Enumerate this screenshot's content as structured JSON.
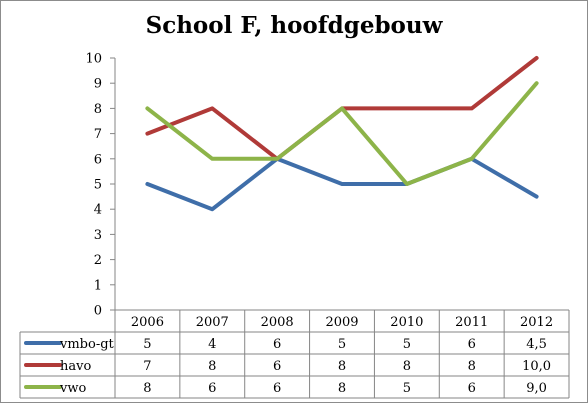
{
  "chart_data": {
    "type": "line",
    "title": "School F, hoofdgebouw",
    "categories": [
      "2006",
      "2007",
      "2008",
      "2009",
      "2010",
      "2011",
      "2012"
    ],
    "ylim": [
      0,
      10
    ],
    "yticks": [
      "0",
      "1",
      "2",
      "3",
      "4",
      "5",
      "6",
      "7",
      "8",
      "9",
      "10"
    ],
    "grid": false,
    "legend": "data-table",
    "series": [
      {
        "name": "vmbo-gt",
        "color": "#3f6ea9",
        "values": [
          5,
          4,
          6,
          5,
          5,
          6,
          4.5
        ],
        "table": [
          "5",
          "4",
          "6",
          "5",
          "5",
          "6",
          "4,5"
        ]
      },
      {
        "name": "havo",
        "color": "#b03a38",
        "values": [
          7,
          8,
          6,
          8,
          8,
          8,
          10
        ],
        "table": [
          "7",
          "8",
          "6",
          "8",
          "8",
          "8",
          "10,0"
        ]
      },
      {
        "name": "vwo",
        "color": "#8db449",
        "values": [
          8,
          6,
          6,
          8,
          5,
          6,
          9
        ],
        "table": [
          "8",
          "6",
          "6",
          "8",
          "5",
          "6",
          "9,0"
        ]
      }
    ]
  }
}
